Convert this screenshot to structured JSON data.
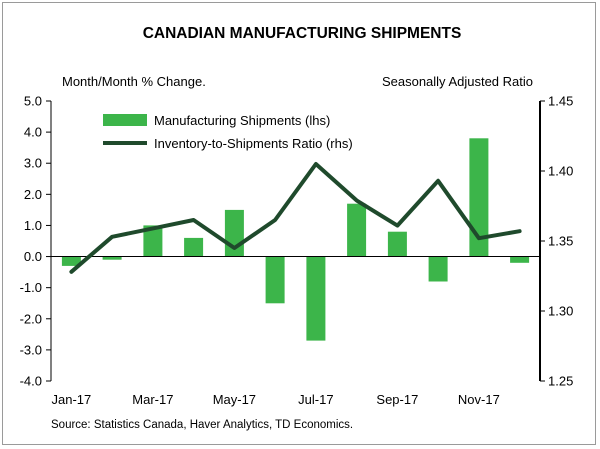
{
  "chart_data": {
    "type": "bar",
    "title": "CANADIAN MANUFACTURING SHIPMENTS",
    "y_left_label": "Month/Month % Change.",
    "y_right_label": "Seasonally Adjusted Ratio",
    "source": "Source: Statistics Canada, Haver Analytics, TD Economics.",
    "y_left_ticks": [
      "5.0",
      "4.0",
      "3.0",
      "2.0",
      "1.0",
      "0.0",
      "-1.0",
      "-2.0",
      "-3.0",
      "-4.0"
    ],
    "y_right_ticks": [
      "1.45",
      "1.40",
      "1.35",
      "1.30",
      "1.25"
    ],
    "y_left_range": [
      -4,
      5
    ],
    "y_right_range": [
      1.25,
      1.45
    ],
    "x_tick_labels": [
      "Jan-17",
      "Mar-17",
      "May-17",
      "Jul-17",
      "Sep-17",
      "Nov-17"
    ],
    "categories": [
      "Jan-17",
      "Feb-17",
      "Mar-17",
      "Apr-17",
      "May-17",
      "Jun-17",
      "Jul-17",
      "Aug-17",
      "Sep-17",
      "Oct-17",
      "Nov-17",
      "Dec-17"
    ],
    "series": [
      {
        "name": "Manufacturing Shipments (lhs)",
        "type": "bar",
        "axis": "left",
        "color": "#3cb54a",
        "values": [
          -0.3,
          -0.1,
          1.0,
          0.6,
          1.5,
          -1.5,
          -2.7,
          1.7,
          0.8,
          -0.8,
          3.8,
          -0.2
        ]
      },
      {
        "name": "Inventory-to-Shipments Ratio (rhs)",
        "type": "line",
        "axis": "right",
        "color": "#1f4a2c",
        "values": [
          1.328,
          1.353,
          1.359,
          1.365,
          1.345,
          1.365,
          1.405,
          1.379,
          1.361,
          1.393,
          1.352,
          1.357
        ]
      }
    ],
    "legend": "top-left",
    "grid": false
  }
}
